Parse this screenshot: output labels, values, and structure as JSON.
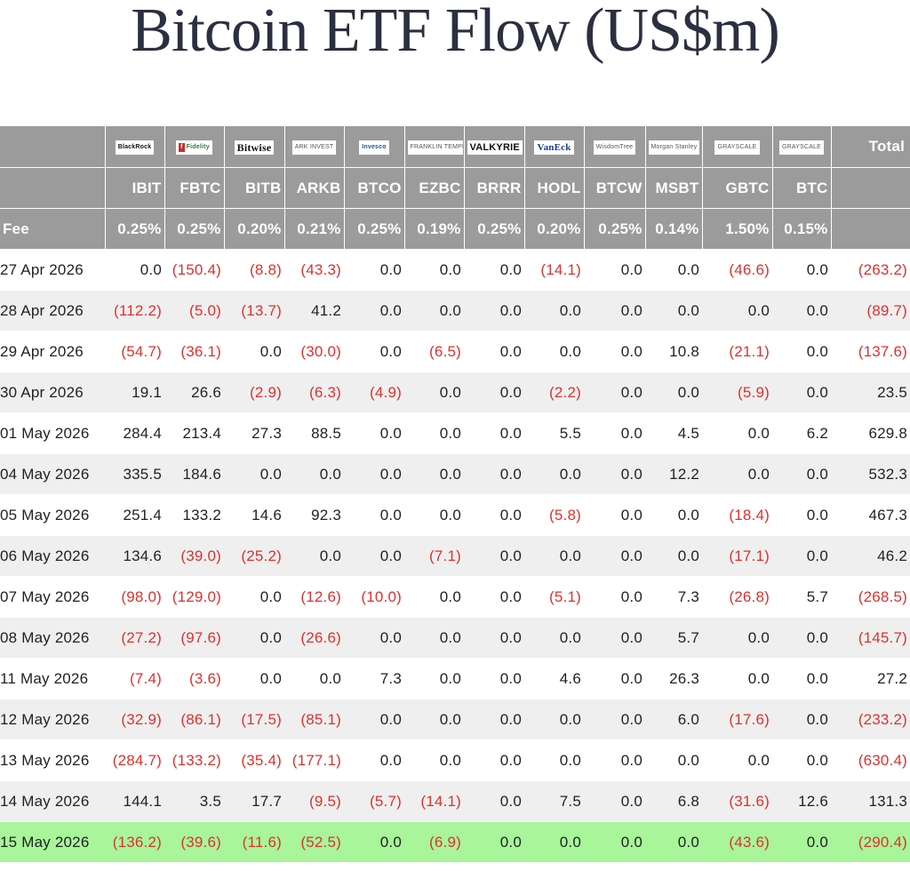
{
  "title": "Bitcoin ETF Flow (US$m)",
  "header": {
    "logos": [
      {
        "name": "blackrock-logo",
        "text": "BlackRock"
      },
      {
        "name": "fidelity-logo",
        "text": "Fidelity"
      },
      {
        "name": "bitwise-logo",
        "text": "Bitwise"
      },
      {
        "name": "ark-logo",
        "text": "ARK INVEST"
      },
      {
        "name": "invesco-logo",
        "text": "Invesco"
      },
      {
        "name": "franklin-templeton-logo",
        "text": "FRANKLIN TEMPLETON"
      },
      {
        "name": "valkyrie-logo",
        "text": "VALKYRIE"
      },
      {
        "name": "vaneck-logo",
        "text": "VanEck"
      },
      {
        "name": "wisdomtree-logo",
        "text": "WisdomTree"
      },
      {
        "name": "morgan-stanley-logo",
        "text": "Morgan Stanley"
      },
      {
        "name": "grayscale-logo",
        "text": "GRAYSCALE"
      },
      {
        "name": "grayscale-logo",
        "text": "GRAYSCALE"
      }
    ],
    "total_label": "Total",
    "tickers": [
      "IBIT",
      "FBTC",
      "BITB",
      "ARKB",
      "BTCO",
      "EZBC",
      "BRRR",
      "HODL",
      "BTCW",
      "MSBT",
      "GBTC",
      "BTC"
    ],
    "fee_label": "Fee",
    "fees": [
      "0.25%",
      "0.25%",
      "0.20%",
      "0.21%",
      "0.25%",
      "0.19%",
      "0.25%",
      "0.20%",
      "0.25%",
      "0.14%",
      "1.50%",
      "0.15%"
    ]
  },
  "rows": [
    {
      "date": "27 Apr 2026",
      "values": [
        "0.0",
        "(150.4)",
        "(8.8)",
        "(43.3)",
        "0.0",
        "0.0",
        "0.0",
        "(14.1)",
        "0.0",
        "0.0",
        "(46.6)",
        "0.0",
        "(263.2)"
      ]
    },
    {
      "date": "28 Apr 2026",
      "values": [
        "(112.2)",
        "(5.0)",
        "(13.7)",
        "41.2",
        "0.0",
        "0.0",
        "0.0",
        "0.0",
        "0.0",
        "0.0",
        "0.0",
        "0.0",
        "(89.7)"
      ]
    },
    {
      "date": "29 Apr 2026",
      "values": [
        "(54.7)",
        "(36.1)",
        "0.0",
        "(30.0)",
        "0.0",
        "(6.5)",
        "0.0",
        "0.0",
        "0.0",
        "10.8",
        "(21.1)",
        "0.0",
        "(137.6)"
      ]
    },
    {
      "date": "30 Apr 2026",
      "values": [
        "19.1",
        "26.6",
        "(2.9)",
        "(6.3)",
        "(4.9)",
        "0.0",
        "0.0",
        "(2.2)",
        "0.0",
        "0.0",
        "(5.9)",
        "0.0",
        "23.5"
      ]
    },
    {
      "date": "01 May 2026",
      "values": [
        "284.4",
        "213.4",
        "27.3",
        "88.5",
        "0.0",
        "0.0",
        "0.0",
        "5.5",
        "0.0",
        "4.5",
        "0.0",
        "6.2",
        "629.8"
      ]
    },
    {
      "date": "04 May 2026",
      "values": [
        "335.5",
        "184.6",
        "0.0",
        "0.0",
        "0.0",
        "0.0",
        "0.0",
        "0.0",
        "0.0",
        "12.2",
        "0.0",
        "0.0",
        "532.3"
      ]
    },
    {
      "date": "05 May 2026",
      "values": [
        "251.4",
        "133.2",
        "14.6",
        "92.3",
        "0.0",
        "0.0",
        "0.0",
        "(5.8)",
        "0.0",
        "0.0",
        "(18.4)",
        "0.0",
        "467.3"
      ]
    },
    {
      "date": "06 May 2026",
      "values": [
        "134.6",
        "(39.0)",
        "(25.2)",
        "0.0",
        "0.0",
        "(7.1)",
        "0.0",
        "0.0",
        "0.0",
        "0.0",
        "(17.1)",
        "0.0",
        "46.2"
      ]
    },
    {
      "date": "07 May 2026",
      "values": [
        "(98.0)",
        "(129.0)",
        "0.0",
        "(12.6)",
        "(10.0)",
        "0.0",
        "0.0",
        "(5.1)",
        "0.0",
        "7.3",
        "(26.8)",
        "5.7",
        "(268.5)"
      ]
    },
    {
      "date": "08 May 2026",
      "values": [
        "(27.2)",
        "(97.6)",
        "0.0",
        "(26.6)",
        "0.0",
        "0.0",
        "0.0",
        "0.0",
        "0.0",
        "5.7",
        "0.0",
        "0.0",
        "(145.7)"
      ]
    },
    {
      "date": "11 May 2026",
      "values": [
        "(7.4)",
        "(3.6)",
        "0.0",
        "0.0",
        "7.3",
        "0.0",
        "0.0",
        "4.6",
        "0.0",
        "26.3",
        "0.0",
        "0.0",
        "27.2"
      ]
    },
    {
      "date": "12 May 2026",
      "values": [
        "(32.9)",
        "(86.1)",
        "(17.5)",
        "(85.1)",
        "0.0",
        "0.0",
        "0.0",
        "0.0",
        "0.0",
        "6.0",
        "(17.6)",
        "0.0",
        "(233.2)"
      ]
    },
    {
      "date": "13 May 2026",
      "values": [
        "(284.7)",
        "(133.2)",
        "(35.4)",
        "(177.1)",
        "0.0",
        "0.0",
        "0.0",
        "0.0",
        "0.0",
        "0.0",
        "0.0",
        "0.0",
        "(630.4)"
      ]
    },
    {
      "date": "14 May 2026",
      "values": [
        "144.1",
        "3.5",
        "17.7",
        "(9.5)",
        "(5.7)",
        "(14.1)",
        "0.0",
        "7.5",
        "0.0",
        "6.8",
        "(31.6)",
        "12.6",
        "131.3"
      ]
    },
    {
      "date": "15 May 2026",
      "values": [
        "(136.2)",
        "(39.6)",
        "(11.6)",
        "(52.5)",
        "0.0",
        "(6.9)",
        "0.0",
        "0.0",
        "0.0",
        "0.0",
        "(43.6)",
        "0.0",
        "(290.4)"
      ]
    }
  ],
  "highlighted_row_index": 14,
  "colors": {
    "header_bg": "#9b9b9b",
    "negative_text": "#e0302c",
    "highlight_row": "#a8f59a",
    "alt_row": "#efefef"
  }
}
